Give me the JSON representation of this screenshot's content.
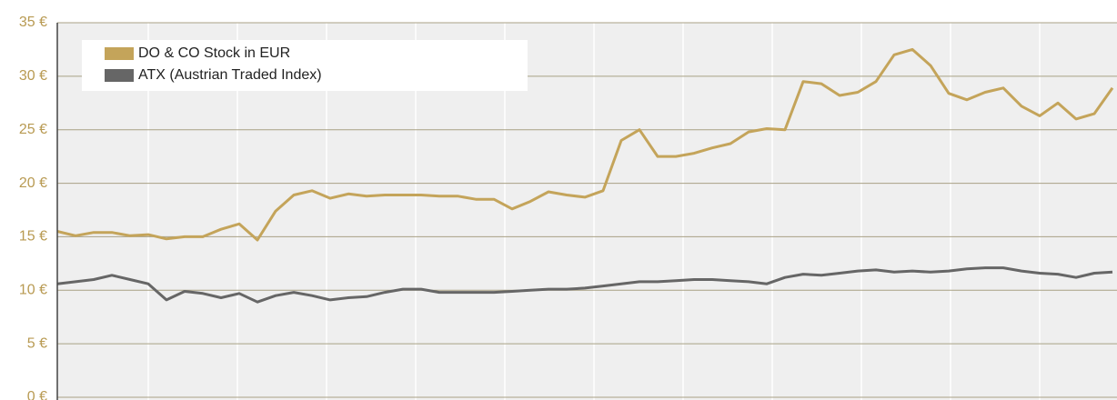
{
  "chart_data": {
    "type": "line",
    "series": [
      {
        "name": "DO & CO Stock in EUR",
        "color": "#c4a45a",
        "values": [
          15.5,
          15.1,
          15.4,
          15.4,
          15.1,
          15.2,
          14.8,
          15.0,
          15.0,
          15.7,
          16.2,
          14.7,
          17.4,
          18.9,
          19.3,
          18.6,
          19.0,
          18.8,
          18.9,
          18.9,
          18.9,
          18.8,
          18.8,
          18.5,
          18.5,
          17.6,
          18.3,
          19.2,
          18.9,
          18.7,
          19.3,
          24.0,
          25.0,
          22.5,
          22.5,
          22.8,
          23.3,
          23.7,
          24.8,
          25.1,
          25.0,
          29.5,
          29.3,
          28.2,
          28.5,
          29.5,
          32.0,
          32.5,
          31.0,
          28.4,
          27.8,
          28.5,
          28.9,
          27.2,
          26.3,
          27.5,
          26.0,
          26.5,
          28.9
        ]
      },
      {
        "name": "ATX (Austrian Traded Index)",
        "color": "#666666",
        "values": [
          10.6,
          10.8,
          11.0,
          11.4,
          11.0,
          10.6,
          9.1,
          9.9,
          9.7,
          9.3,
          9.7,
          8.9,
          9.5,
          9.8,
          9.5,
          9.1,
          9.3,
          9.4,
          9.8,
          10.1,
          10.1,
          9.8,
          9.8,
          9.8,
          9.8,
          9.9,
          10.0,
          10.1,
          10.1,
          10.2,
          10.4,
          10.6,
          10.8,
          10.8,
          10.9,
          11.0,
          11.0,
          10.9,
          10.8,
          10.6,
          11.2,
          11.5,
          11.4,
          11.6,
          11.8,
          11.9,
          11.7,
          11.8,
          11.7,
          11.8,
          12.0,
          12.1,
          12.1,
          11.8,
          11.6,
          11.5,
          11.2,
          11.6,
          11.7
        ]
      }
    ],
    "ylim": [
      0,
      35
    ],
    "yticks": [
      {
        "value": 0,
        "label": "0 €"
      },
      {
        "value": 5,
        "label": "5 €"
      },
      {
        "value": 10,
        "label": "10 €"
      },
      {
        "value": 15,
        "label": "15 €"
      },
      {
        "value": 20,
        "label": "20 €"
      },
      {
        "value": 25,
        "label": "25 €"
      },
      {
        "value": 30,
        "label": "30 €"
      },
      {
        "value": 35,
        "label": "35 €"
      }
    ],
    "grid": true,
    "legend": "top-left"
  }
}
